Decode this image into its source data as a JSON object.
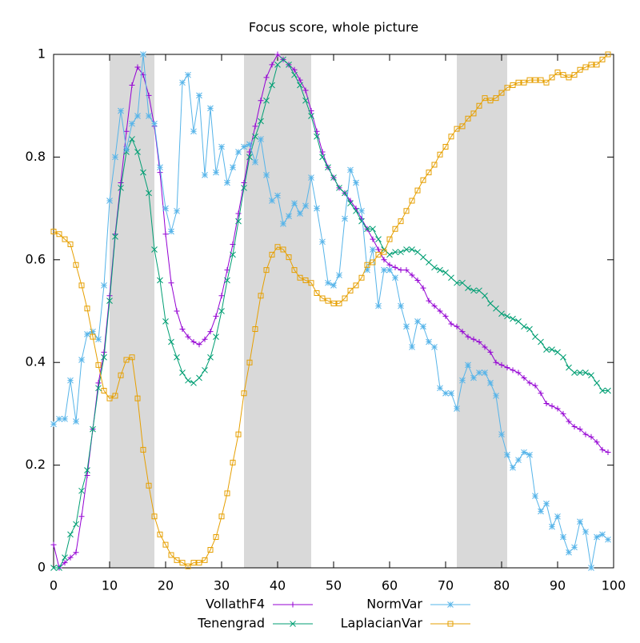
{
  "chart_data": {
    "type": "line",
    "title": "Focus score, whole picture",
    "x": [
      0,
      1,
      2,
      3,
      4,
      5,
      6,
      7,
      8,
      9,
      10,
      11,
      12,
      13,
      14,
      15,
      16,
      17,
      18,
      19,
      20,
      21,
      22,
      23,
      24,
      25,
      26,
      27,
      28,
      29,
      30,
      31,
      32,
      33,
      34,
      35,
      36,
      37,
      38,
      39,
      40,
      41,
      42,
      43,
      44,
      45,
      46,
      47,
      48,
      49,
      50,
      51,
      52,
      53,
      54,
      55,
      56,
      57,
      58,
      59,
      60,
      61,
      62,
      63,
      64,
      65,
      66,
      67,
      68,
      69,
      70,
      71,
      72,
      73,
      74,
      75,
      76,
      77,
      78,
      79,
      80,
      81,
      82,
      83,
      84,
      85,
      86,
      87,
      88,
      89,
      90,
      91,
      92,
      93,
      94,
      95,
      96,
      97,
      98,
      99
    ],
    "series": [
      {
        "name": "VollathF4",
        "color": "#9400d3",
        "marker": "plus",
        "values": [
          0.045,
          0,
          0.01,
          0.02,
          0.03,
          0.1,
          0.18,
          0.27,
          0.36,
          0.42,
          0.53,
          0.65,
          0.75,
          0.85,
          0.94,
          0.975,
          0.96,
          0.92,
          0.86,
          0.77,
          0.65,
          0.555,
          0.5,
          0.465,
          0.45,
          0.44,
          0.435,
          0.445,
          0.46,
          0.49,
          0.53,
          0.58,
          0.63,
          0.69,
          0.75,
          0.81,
          0.86,
          0.91,
          0.955,
          0.98,
          1.0,
          0.99,
          0.98,
          0.97,
          0.95,
          0.93,
          0.89,
          0.85,
          0.81,
          0.78,
          0.76,
          0.74,
          0.73,
          0.715,
          0.7,
          0.68,
          0.66,
          0.64,
          0.62,
          0.6,
          0.59,
          0.585,
          0.58,
          0.58,
          0.57,
          0.56,
          0.545,
          0.52,
          0.51,
          0.5,
          0.49,
          0.475,
          0.47,
          0.46,
          0.45,
          0.445,
          0.44,
          0.43,
          0.42,
          0.4,
          0.395,
          0.39,
          0.385,
          0.38,
          0.37,
          0.36,
          0.355,
          0.34,
          0.32,
          0.315,
          0.31,
          0.3,
          0.285,
          0.275,
          0.27,
          0.26,
          0.255,
          0.245,
          0.23,
          0.225
        ]
      },
      {
        "name": "Tenengrad",
        "color": "#009e73",
        "marker": "cross",
        "values": [
          0,
          0,
          0.02,
          0.065,
          0.085,
          0.15,
          0.19,
          0.27,
          0.35,
          0.41,
          0.52,
          0.645,
          0.74,
          0.81,
          0.835,
          0.81,
          0.77,
          0.73,
          0.62,
          0.56,
          0.48,
          0.44,
          0.41,
          0.38,
          0.365,
          0.36,
          0.37,
          0.385,
          0.41,
          0.45,
          0.5,
          0.56,
          0.61,
          0.675,
          0.74,
          0.8,
          0.84,
          0.87,
          0.91,
          0.94,
          0.98,
          0.99,
          0.98,
          0.96,
          0.94,
          0.91,
          0.88,
          0.84,
          0.8,
          0.78,
          0.76,
          0.74,
          0.73,
          0.71,
          0.695,
          0.675,
          0.66,
          0.66,
          0.64,
          0.62,
          0.61,
          0.615,
          0.615,
          0.62,
          0.62,
          0.615,
          0.605,
          0.595,
          0.585,
          0.58,
          0.575,
          0.565,
          0.555,
          0.555,
          0.545,
          0.54,
          0.54,
          0.53,
          0.515,
          0.505,
          0.495,
          0.49,
          0.485,
          0.48,
          0.47,
          0.465,
          0.45,
          0.44,
          0.425,
          0.425,
          0.42,
          0.41,
          0.39,
          0.38,
          0.38,
          0.38,
          0.375,
          0.36,
          0.345,
          0.345
        ]
      },
      {
        "name": "NormVar",
        "color": "#56b4e9",
        "marker": "star",
        "values": [
          0.28,
          0.29,
          0.29,
          0.365,
          0.285,
          0.405,
          0.455,
          0.46,
          0.445,
          0.55,
          0.715,
          0.8,
          0.89,
          0.815,
          0.865,
          0.88,
          1.0,
          0.88,
          0.865,
          0.78,
          0.7,
          0.655,
          0.695,
          0.945,
          0.96,
          0.85,
          0.92,
          0.765,
          0.895,
          0.77,
          0.82,
          0.75,
          0.78,
          0.81,
          0.82,
          0.825,
          0.79,
          0.835,
          0.765,
          0.715,
          0.725,
          0.67,
          0.685,
          0.71,
          0.69,
          0.705,
          0.76,
          0.7,
          0.635,
          0.555,
          0.55,
          0.57,
          0.68,
          0.775,
          0.75,
          0.695,
          0.58,
          0.62,
          0.51,
          0.58,
          0.58,
          0.565,
          0.51,
          0.47,
          0.43,
          0.48,
          0.47,
          0.44,
          0.43,
          0.35,
          0.34,
          0.34,
          0.31,
          0.365,
          0.395,
          0.37,
          0.38,
          0.38,
          0.36,
          0.335,
          0.26,
          0.22,
          0.195,
          0.21,
          0.225,
          0.22,
          0.14,
          0.11,
          0.125,
          0.08,
          0.1,
          0.06,
          0.03,
          0.04,
          0.09,
          0.07,
          0,
          0.06,
          0.065,
          0.055
        ]
      },
      {
        "name": "LaplacianVar",
        "color": "#e69f00",
        "marker": "square",
        "values": [
          0.655,
          0.65,
          0.64,
          0.63,
          0.59,
          0.55,
          0.505,
          0.45,
          0.395,
          0.345,
          0.33,
          0.335,
          0.375,
          0.405,
          0.41,
          0.33,
          0.23,
          0.16,
          0.1,
          0.065,
          0.045,
          0.025,
          0.015,
          0.01,
          0.003,
          0.01,
          0.01,
          0.015,
          0.035,
          0.06,
          0.1,
          0.145,
          0.205,
          0.26,
          0.34,
          0.4,
          0.465,
          0.53,
          0.58,
          0.61,
          0.625,
          0.62,
          0.605,
          0.58,
          0.565,
          0.56,
          0.555,
          0.535,
          0.525,
          0.52,
          0.515,
          0.515,
          0.525,
          0.54,
          0.55,
          0.565,
          0.59,
          0.595,
          0.61,
          0.615,
          0.64,
          0.66,
          0.675,
          0.695,
          0.715,
          0.735,
          0.755,
          0.77,
          0.785,
          0.805,
          0.82,
          0.84,
          0.855,
          0.86,
          0.875,
          0.885,
          0.9,
          0.915,
          0.91,
          0.915,
          0.925,
          0.935,
          0.94,
          0.945,
          0.945,
          0.95,
          0.95,
          0.95,
          0.945,
          0.955,
          0.965,
          0.96,
          0.955,
          0.96,
          0.97,
          0.975,
          0.98,
          0.98,
          0.99,
          1.0
        ]
      }
    ],
    "shaded_regions": [
      [
        10,
        18
      ],
      [
        34,
        46
      ],
      [
        72,
        81
      ]
    ],
    "shade_color": "#d9d9d9",
    "xlim": [
      0,
      100
    ],
    "xticks": [
      0,
      10,
      20,
      30,
      40,
      50,
      60,
      70,
      80,
      90,
      100
    ],
    "ylim": [
      0,
      1
    ],
    "yticks": [
      0,
      0.2,
      0.4,
      0.6,
      0.8,
      1
    ],
    "legend": "bottom"
  }
}
